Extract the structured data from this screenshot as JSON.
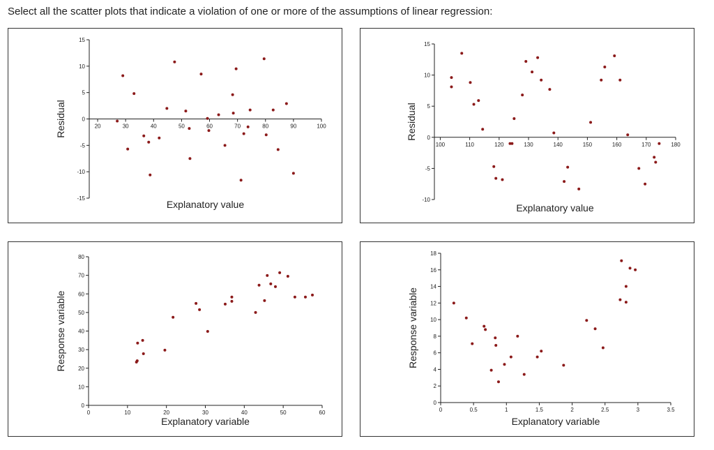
{
  "question": "Select all the scatter plots that indicate a violation of one or more of the assumptions of linear regression:",
  "chart_data": [
    {
      "type": "scatter",
      "color": "#8b1a1a",
      "ylabel": "Residual",
      "xlabel": "Explanatory value",
      "xlim": [
        17,
        100
      ],
      "xticks": [
        20,
        30,
        40,
        50,
        60,
        70,
        80,
        90,
        100
      ],
      "ylim": [
        -15,
        15
      ],
      "yticks": [
        -15,
        -10,
        -5,
        0,
        5,
        10,
        15
      ],
      "x": [
        27,
        29,
        30.75,
        33,
        36.5,
        38.25,
        38.75,
        42,
        44.75,
        47.5,
        51.5,
        52.75,
        53,
        57,
        59.25,
        59.75,
        63.25,
        65.5,
        68.25,
        68.5,
        69.5,
        71.25,
        72.25,
        73.75,
        74.5,
        79.5,
        80.25,
        82.75,
        84.5,
        87.5,
        90
      ],
      "values": [
        -0.4,
        8.2,
        -5.7,
        4.8,
        -3.2,
        -4.4,
        -10.6,
        -3.6,
        2,
        10.8,
        1.5,
        -1.8,
        -7.5,
        8.5,
        0.1,
        -2.2,
        0.8,
        -5,
        4.6,
        1.1,
        9.5,
        -11.6,
        -2.8,
        -1.5,
        1.7,
        11.4,
        -3,
        1.7,
        -5.8,
        2.9,
        -10.3
      ]
    },
    {
      "type": "scatter",
      "color": "#8b1a1a",
      "ylabel": "Residual",
      "xlabel": "Explanatory value",
      "xlim": [
        98,
        180
      ],
      "xticks": [
        100,
        110,
        120,
        130,
        140,
        150,
        160,
        170,
        180
      ],
      "ylim": [
        -10,
        15
      ],
      "yticks": [
        -10,
        -5,
        0,
        5,
        10,
        15
      ],
      "x": [
        103.8,
        103.8,
        107.3,
        110.2,
        111.4,
        113,
        114.4,
        118.2,
        118.9,
        121.1,
        123.7,
        124.4,
        125.1,
        127.9,
        129.1,
        131.2,
        133.1,
        134.3,
        137.2,
        138.6,
        142.1,
        143.3,
        147.1,
        151.1,
        154.7,
        155.9,
        159.2,
        161.1,
        163.7,
        167.5,
        169.6,
        172.7,
        173.2,
        174.4
      ],
      "values": [
        9.6,
        8.1,
        13.5,
        8.8,
        5.3,
        5.9,
        1.3,
        -4.7,
        -6.6,
        -6.8,
        -1,
        -1,
        3,
        6.8,
        12.2,
        10.5,
        12.8,
        9.2,
        7.7,
        0.7,
        -7.1,
        -4.8,
        -8.3,
        2.4,
        9.2,
        11.3,
        13.1,
        9.2,
        0.4,
        -5,
        -7.5,
        -3.2,
        -4,
        -1
      ]
    },
    {
      "type": "scatter",
      "color": "#8b1a1a",
      "ylabel": "Response variable",
      "xlabel": "Explanatory variable",
      "xlim": [
        0,
        60
      ],
      "xticks": [
        0,
        10,
        20,
        30,
        40,
        50,
        60
      ],
      "ylim": [
        0,
        80
      ],
      "yticks": [
        0,
        10,
        20,
        30,
        40,
        50,
        60,
        70,
        80
      ],
      "x": [
        12.3,
        12.5,
        12.6,
        13.9,
        14.1,
        19.6,
        21.7,
        27.6,
        28.5,
        30.6,
        35.1,
        36.8,
        36.8,
        42.9,
        43.8,
        45.2,
        45.9,
        46.8,
        48,
        49.1,
        51.2,
        53,
        55.7,
        57.5
      ],
      "values": [
        23.3,
        24,
        33.5,
        35,
        27.8,
        29.7,
        47.4,
        54.9,
        51.5,
        39.8,
        54.5,
        58.3,
        56,
        50,
        64.7,
        56.4,
        69.9,
        65.4,
        63.9,
        71.4,
        69.5,
        58.3,
        58.3,
        59.4
      ]
    },
    {
      "type": "scatter",
      "color": "#8b1a1a",
      "ylabel": "Response variable",
      "xlabel": "Explanatory variable",
      "xlim": [
        0,
        3.5
      ],
      "xticks": [
        0,
        0.5,
        1,
        1.5,
        2,
        2.5,
        3,
        3.5
      ],
      "ylim": [
        0,
        18
      ],
      "yticks": [
        0,
        2,
        4,
        6,
        8,
        10,
        12,
        14,
        16,
        18
      ],
      "x": [
        0.2,
        0.39,
        0.48,
        0.66,
        0.68,
        0.77,
        0.83,
        0.84,
        0.88,
        0.97,
        1.07,
        1.17,
        1.27,
        1.47,
        1.53,
        1.87,
        2.22,
        2.35,
        2.47,
        2.73,
        2.75,
        2.82,
        2.82,
        2.88,
        2.96
      ],
      "values": [
        12,
        10.2,
        7.1,
        9.2,
        8.8,
        3.9,
        7.8,
        6.9,
        2.5,
        4.6,
        5.5,
        8,
        3.4,
        5.5,
        6.2,
        4.5,
        9.9,
        8.9,
        6.6,
        12.4,
        17.1,
        14,
        12.1,
        16.2,
        16
      ]
    }
  ]
}
